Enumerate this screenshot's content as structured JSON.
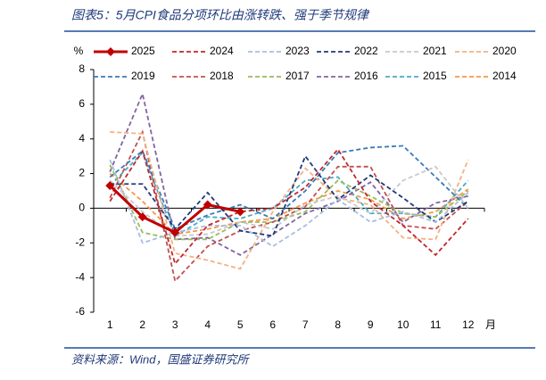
{
  "chart_data": {
    "type": "line",
    "title": "图表5：5月CPI食品分项环比由涨转跌、强于季节规律",
    "source": "资料来源：Wind，国盛证券研究所",
    "y_label": "%",
    "x_label": "月",
    "categories": [
      "1",
      "2",
      "3",
      "4",
      "5",
      "6",
      "7",
      "8",
      "9",
      "10",
      "11",
      "12"
    ],
    "ylim": [
      -6,
      8
    ],
    "yticks": [
      -6,
      -4,
      -2,
      0,
      2,
      4,
      6,
      8
    ],
    "series": [
      {
        "name": "2025",
        "color": "#c00000",
        "style": "solid",
        "marker": "diamond",
        "values": [
          1.3,
          -0.5,
          -1.4,
          0.2,
          -0.2,
          null,
          null,
          null,
          null,
          null,
          null,
          null
        ]
      },
      {
        "name": "2024",
        "color": "#c0282d",
        "style": "dashed",
        "values": [
          0.4,
          3.3,
          -3.2,
          -1.0,
          -0.2,
          0.0,
          1.2,
          3.4,
          0.4,
          -1.0,
          -2.7,
          -0.6
        ]
      },
      {
        "name": "2023",
        "color": "#a9bde0",
        "style": "dashed",
        "values": [
          2.8,
          -2.0,
          -1.4,
          -1.0,
          -1.0,
          -2.2,
          -1.0,
          0.5,
          -0.8,
          -0.2,
          -0.8,
          0.9
        ]
      },
      {
        "name": "2022",
        "color": "#1f3a7a",
        "style": "dashed",
        "values": [
          1.4,
          1.4,
          -1.2,
          0.9,
          -1.3,
          -1.6,
          3.0,
          0.5,
          1.9,
          0.6,
          -0.8,
          0.4
        ]
      },
      {
        "name": "2021",
        "color": "#c8c8d0",
        "style": "dashed",
        "values": [
          1.6,
          -0.2,
          -1.6,
          -1.5,
          -0.8,
          -1.2,
          0.2,
          0.7,
          -0.3,
          1.6,
          2.4,
          0.0
        ]
      },
      {
        "name": "2020",
        "color": "#f4b183",
        "style": "dashed",
        "values": [
          4.4,
          4.3,
          -2.6,
          -3.0,
          -3.5,
          -0.2,
          2.3,
          0.6,
          0.2,
          -1.7,
          -1.8,
          2.8
        ]
      },
      {
        "name": "2019",
        "color": "#3a7ab8",
        "style": "dashed",
        "values": [
          1.8,
          3.3,
          -1.2,
          -0.4,
          0.2,
          -0.6,
          1.0,
          3.2,
          3.5,
          3.6,
          1.8,
          0.0
        ]
      },
      {
        "name": "2018",
        "color": "#c0504d",
        "style": "dashed",
        "values": [
          0.6,
          4.4,
          -4.2,
          -2.2,
          -1.3,
          -0.8,
          0.1,
          2.4,
          2.4,
          -1.0,
          -1.2,
          0.4
        ]
      },
      {
        "name": "2017",
        "color": "#9bbb59",
        "style": "dashed",
        "values": [
          2.5,
          -1.4,
          -1.8,
          -1.8,
          -0.8,
          -0.8,
          -0.2,
          1.6,
          0.7,
          -0.3,
          -0.5,
          1.0
        ]
      },
      {
        "name": "2016",
        "color": "#8064a2",
        "style": "dashed",
        "values": [
          2.1,
          6.6,
          -1.8,
          -1.7,
          -2.7,
          -1.5,
          -0.3,
          0.4,
          1.5,
          -0.8,
          0.3,
          0.7
        ]
      },
      {
        "name": "2015",
        "color": "#4bacc6",
        "style": "dashed",
        "values": [
          1.3,
          3.2,
          -1.6,
          -0.5,
          -0.6,
          0.0,
          1.6,
          1.8,
          -0.3,
          -0.3,
          -0.5,
          1.6
        ]
      },
      {
        "name": "2014",
        "color": "#f79646",
        "style": "dashed",
        "values": [
          2.0,
          0.4,
          -1.5,
          -1.2,
          -0.8,
          -0.6,
          0.3,
          1.0,
          0.5,
          -0.6,
          -0.2,
          1.1
        ]
      }
    ]
  }
}
